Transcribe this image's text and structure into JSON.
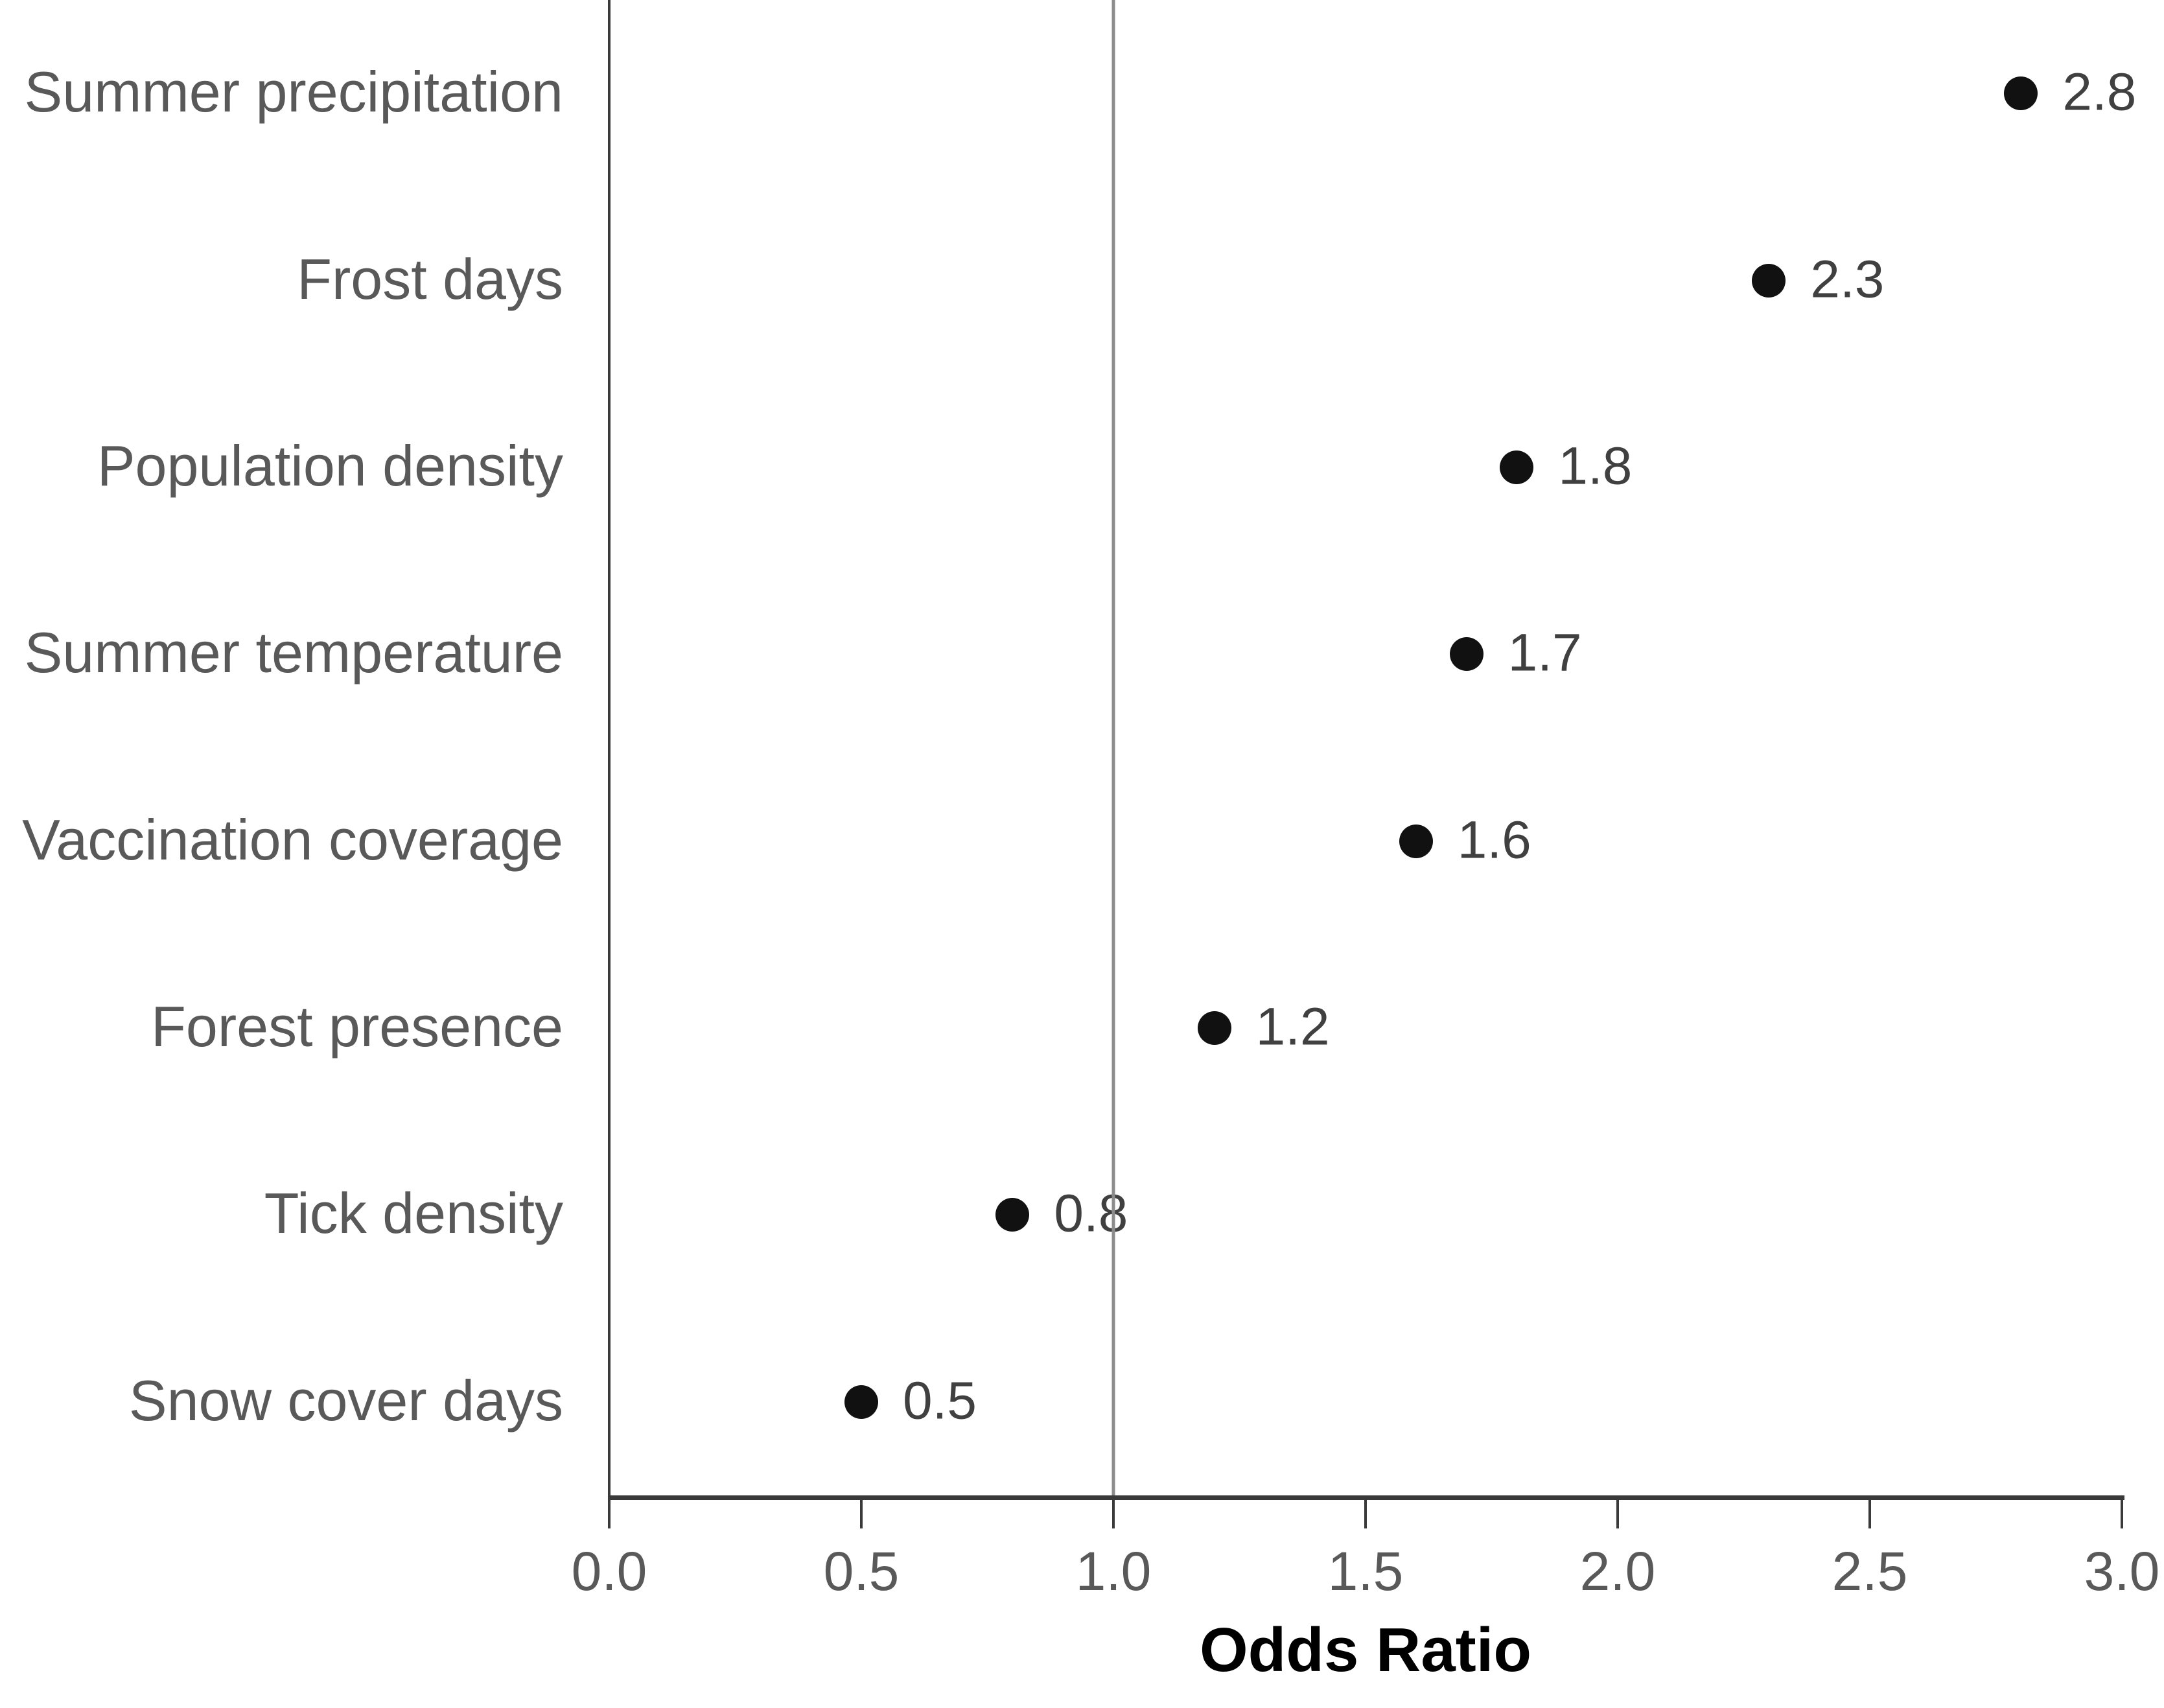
{
  "chart_data": {
    "type": "scatter",
    "variant": "horizontal-dot-plot",
    "title": "",
    "xlabel": "Odds Ratio",
    "ylabel": "",
    "xlim": [
      0.0,
      3.0
    ],
    "grid": false,
    "legend": false,
    "reference_line_x": 1.0,
    "categories": [
      "Summer precipitation",
      "Frost days",
      "Population density",
      "Summer temperature",
      "Vaccination coverage",
      "Forest presence",
      "Tick density",
      "Snow cover days"
    ],
    "values": [
      2.8,
      2.3,
      1.8,
      1.7,
      1.6,
      1.2,
      0.8,
      0.5
    ],
    "point_labels": [
      "2.8",
      "2.3",
      "1.8",
      "1.7",
      "1.6",
      "1.2",
      "0.8",
      "0.5"
    ],
    "xticks": [
      "0.0",
      "0.5",
      "1.0",
      "1.5",
      "2.0",
      "2.5",
      "3.0"
    ],
    "colors": {
      "dot": "#111111",
      "category_label": "#595959",
      "point_label": "#404040",
      "tick_label": "#595959",
      "axis_line": "#3a3a3a",
      "reference_line": "#8c8c8c",
      "axis_title": "#000000",
      "background": "#ffffff"
    }
  }
}
